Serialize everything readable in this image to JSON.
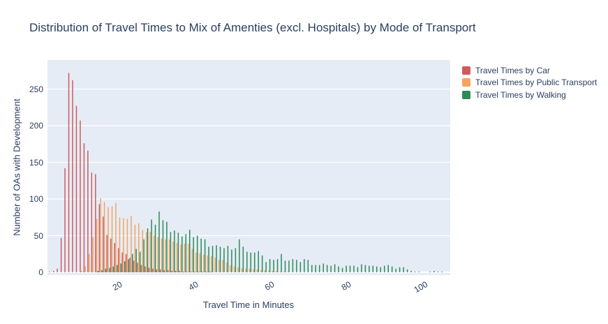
{
  "title": "Distribution of Travel Times to Mix of Amenties (excl. Hospitals) by Mode of Transport",
  "colors": {
    "text": "#2a3f5f",
    "plot_background": "#e5ecf6",
    "grid": "#ffffff",
    "page_background": "#ffffff",
    "car": "#cd5c5c",
    "public_transport": "#f4a460",
    "walking": "#2e8b57"
  },
  "chart_data": {
    "type": "bar",
    "subtype": "grouped-histogram",
    "title": "Distribution of Travel Times to Mix of Amenties (excl. Hospitals) by Mode of Transport",
    "xlabel": "Travel Time in Minutes",
    "ylabel": "Number of OAs with Development",
    "xlim": [
      2,
      108
    ],
    "ylim": [
      0,
      290
    ],
    "xticks": [
      20,
      40,
      60,
      80,
      100
    ],
    "yticks": [
      0,
      50,
      100,
      150,
      200,
      250
    ],
    "grid": true,
    "legend_position": "right",
    "bin_width_minutes": 1,
    "series": [
      {
        "name": "Travel Times by Car",
        "color": "#cd5c5c",
        "x_start": 3,
        "values": [
          1,
          2,
          5,
          47,
          142,
          272,
          262,
          227,
          207,
          176,
          166,
          136,
          134,
          93,
          76,
          51,
          46,
          40,
          33,
          27,
          25,
          20,
          16,
          13,
          10,
          8,
          6,
          5,
          4,
          4,
          3,
          3,
          2,
          2,
          2,
          1,
          1,
          1,
          1,
          1,
          1,
          1,
          1
        ]
      },
      {
        "name": "Travel Times by Public Transport",
        "color": "#f4a460",
        "x_start": 11,
        "values": [
          2,
          8,
          25,
          48,
          73,
          101,
          96,
          89,
          90,
          95,
          75,
          74,
          73,
          77,
          65,
          67,
          58,
          55,
          55,
          50,
          48,
          46,
          45,
          45,
          42,
          40,
          38,
          39,
          39,
          32,
          27,
          26,
          24,
          23,
          22,
          20,
          17,
          17,
          13,
          10,
          8,
          7,
          6,
          5,
          5,
          4,
          4,
          3,
          3,
          2,
          2,
          2,
          1,
          1,
          1
        ]
      },
      {
        "name": "Travel Times by Walking",
        "color": "#2e8b57",
        "x_start": 15,
        "values": [
          2,
          3,
          5,
          6,
          8,
          10,
          12,
          15,
          18,
          25,
          32,
          28,
          45,
          60,
          72,
          65,
          83,
          71,
          69,
          55,
          57,
          54,
          49,
          52,
          58,
          48,
          50,
          46,
          45,
          35,
          36,
          37,
          35,
          33,
          36,
          31,
          33,
          45,
          35,
          28,
          27,
          27,
          29,
          23,
          14,
          18,
          17,
          18,
          25,
          16,
          16,
          18,
          17,
          14,
          18,
          17,
          10,
          10,
          10,
          12,
          10,
          9,
          11,
          8,
          6,
          9,
          9,
          9,
          7,
          11,
          10,
          9,
          9,
          8,
          7,
          9,
          10,
          8,
          5,
          7,
          7,
          4,
          2,
          1,
          1,
          0,
          0,
          1,
          2,
          1,
          1
        ]
      }
    ]
  }
}
